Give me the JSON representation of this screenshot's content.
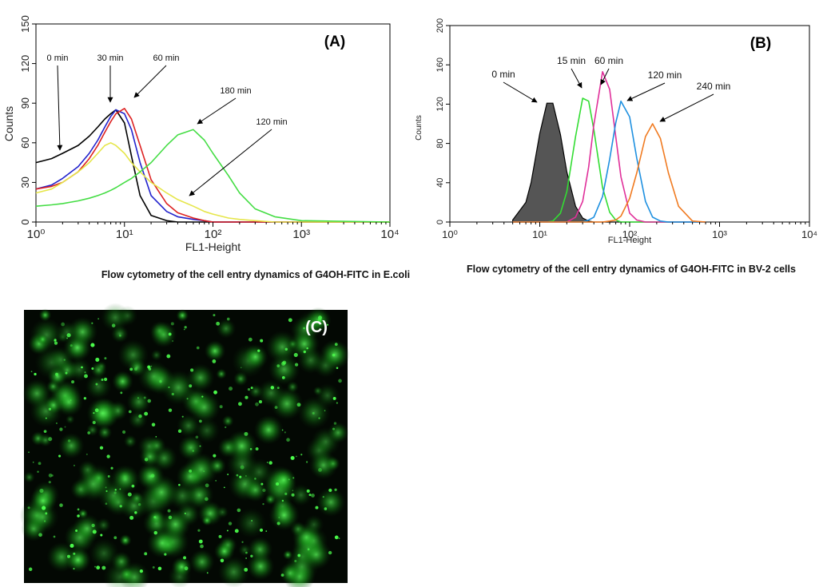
{
  "chart_data": [
    {
      "type": "line",
      "panel_label": "(A)",
      "caption": "Flow cytometry of the cell entry dynamics of G4OH-FITC in E.coli",
      "xlabel": "FL1-Height",
      "ylabel": "Counts",
      "xscale": "log",
      "xlim": [
        1,
        10000
      ],
      "xticks": [
        {
          "value": 1,
          "label": "10⁰"
        },
        {
          "value": 10,
          "label": "10¹"
        },
        {
          "value": 100,
          "label": "10²"
        },
        {
          "value": 1000,
          "label": "10³"
        },
        {
          "value": 10000,
          "label": "10⁴"
        }
      ],
      "ylim": [
        0,
        150
      ],
      "yticks": [
        0,
        30,
        60,
        90,
        120,
        150
      ],
      "x": [
        1,
        1.5,
        2,
        3,
        4,
        5,
        6,
        7,
        8,
        10,
        12,
        15,
        20,
        30,
        40,
        60,
        80,
        100,
        150,
        200,
        300,
        500,
        1000,
        10000
      ],
      "series": [
        {
          "name": "0 min",
          "color": "#000000",
          "values": [
            45,
            48,
            52,
            58,
            65,
            72,
            78,
            82,
            85,
            75,
            50,
            20,
            5,
            1,
            0,
            0,
            0,
            0,
            0,
            0,
            0,
            0,
            0,
            0
          ]
        },
        {
          "name": "30 min",
          "color": "#2222cc",
          "values": [
            25,
            28,
            33,
            42,
            52,
            62,
            72,
            80,
            85,
            82,
            70,
            45,
            20,
            8,
            4,
            2,
            1,
            0,
            0,
            0,
            0,
            0,
            0,
            0
          ]
        },
        {
          "name": "60 min",
          "color": "#dd2222",
          "values": [
            25,
            27,
            30,
            38,
            48,
            58,
            68,
            76,
            82,
            86,
            78,
            58,
            32,
            14,
            7,
            3,
            1,
            0,
            0,
            0,
            0,
            0,
            0,
            0
          ]
        },
        {
          "name": "120 min",
          "color": "#e6e64a",
          "values": [
            22,
            25,
            30,
            38,
            45,
            52,
            58,
            60,
            58,
            52,
            45,
            38,
            30,
            22,
            17,
            12,
            8,
            6,
            3,
            2,
            1,
            0,
            0,
            0
          ]
        },
        {
          "name": "180 min",
          "color": "#44dd44",
          "values": [
            12,
            13,
            14,
            16,
            18,
            20,
            22,
            24,
            26,
            30,
            33,
            38,
            45,
            58,
            66,
            70,
            62,
            52,
            35,
            22,
            10,
            4,
            1,
            0
          ]
        }
      ]
    },
    {
      "type": "line",
      "panel_label": "(B)",
      "caption": "Flow cytometry of the cell entry dynamics of G4OH-FITC in BV-2 cells",
      "xlabel": "FL1-Height",
      "ylabel": "Counts",
      "xscale": "log",
      "xlim": [
        1,
        10000
      ],
      "xticks": [
        {
          "value": 1,
          "label": "10⁰"
        },
        {
          "value": 10,
          "label": "10¹"
        },
        {
          "value": 100,
          "label": "10²"
        },
        {
          "value": 1000,
          "label": "10³"
        },
        {
          "value": 10000,
          "label": "10⁴"
        }
      ],
      "ylim": [
        0,
        200
      ],
      "yticks": [
        0,
        40,
        80,
        120,
        160,
        200
      ],
      "x": [
        5,
        7,
        8,
        10,
        12,
        14,
        17,
        20,
        25,
        30,
        35,
        40,
        50,
        60,
        70,
        80,
        100,
        120,
        150,
        180,
        220,
        270,
        350,
        500,
        700
      ],
      "series": [
        {
          "name": "0 min",
          "color": "#555555",
          "filled": true,
          "values": [
            2,
            20,
            40,
            90,
            121,
            121,
            89,
            51,
            16,
            4,
            1,
            0,
            0,
            0,
            0,
            0,
            0,
            0,
            0,
            0,
            0,
            0,
            0,
            0,
            0
          ]
        },
        {
          "name": "15 min",
          "color": "#33dd33",
          "values": [
            0,
            0,
            0,
            0,
            0,
            1,
            9,
            31,
            87,
            126,
            123,
            94,
            35,
            10,
            2,
            0,
            0,
            0,
            0,
            0,
            0,
            0,
            0,
            0,
            0
          ]
        },
        {
          "name": "60 min",
          "color": "#e0309a",
          "values": [
            0,
            0,
            0,
            0,
            0,
            0,
            0,
            0,
            5,
            21,
            56,
            99,
            153,
            135,
            87,
            46,
            9,
            2,
            0,
            0,
            0,
            0,
            0,
            0,
            0
          ]
        },
        {
          "name": "120 min",
          "color": "#1e90e0",
          "values": [
            0,
            0,
            0,
            0,
            0,
            0,
            0,
            0,
            0,
            0,
            2,
            5,
            26,
            64,
            101,
            123,
            107,
            65,
            21,
            5,
            1,
            0,
            0,
            0,
            0
          ]
        },
        {
          "name": "240 min",
          "color": "#f07a20",
          "values": [
            0,
            0,
            0,
            0,
            0,
            0,
            0,
            0,
            0,
            0,
            0,
            0,
            0,
            1,
            2,
            6,
            24,
            50,
            87,
            100,
            85,
            50,
            16,
            1,
            0
          ]
        }
      ]
    }
  ],
  "image_panel": {
    "label": "(C)"
  }
}
